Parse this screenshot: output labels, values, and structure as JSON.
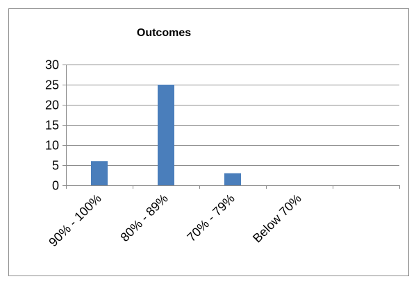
{
  "chart_data": {
    "type": "bar",
    "title": "Outcomes",
    "categories": [
      "90% - 100%",
      "80% - 89%",
      "70% - 79%",
      "Below 70%",
      ""
    ],
    "series": [
      {
        "values": [
          6,
          25,
          3,
          0,
          0
        ],
        "color": "#4a7ebb"
      }
    ],
    "ylim": [
      0,
      30
    ],
    "y_ticks": [
      "0",
      "5",
      "10",
      "15",
      "20",
      "25",
      "30"
    ],
    "grid": true,
    "legend": "none",
    "xlabel": "",
    "ylabel": ""
  }
}
